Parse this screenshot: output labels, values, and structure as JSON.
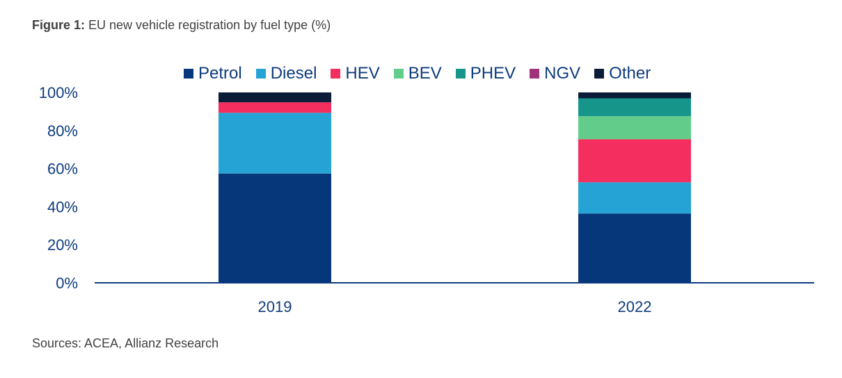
{
  "figure": {
    "number_label": "Figure 1:",
    "title_text": "EU new vehicle registration by fuel type (%)"
  },
  "source": "Sources: ACEA, Allianz Research",
  "colors": {
    "text": "#414141",
    "axis": "#0d3b7e"
  },
  "chart_data": {
    "type": "bar",
    "stacked": true,
    "title": "EU new vehicle registration by fuel type (%)",
    "xlabel": "",
    "ylabel": "",
    "categories": [
      "2019",
      "2022"
    ],
    "ylim": [
      0,
      100
    ],
    "yticks": [
      0,
      20,
      40,
      60,
      80,
      100
    ],
    "ytick_labels": [
      "0%",
      "20%",
      "40%",
      "60%",
      "80%",
      "100%"
    ],
    "legend_position": "top",
    "series": [
      {
        "name": "Petrol",
        "color": "#06377a",
        "values": [
          57.4,
          36.4
        ]
      },
      {
        "name": "Diesel",
        "color": "#26a3d5",
        "values": [
          31.9,
          16.4
        ]
      },
      {
        "name": "HEV",
        "color": "#f42e5e",
        "values": [
          5.5,
          22.6
        ]
      },
      {
        "name": "BEV",
        "color": "#62cd8a",
        "values": [
          0.0,
          12.1
        ]
      },
      {
        "name": "PHEV",
        "color": "#16958b",
        "values": [
          0.0,
          9.4
        ]
      },
      {
        "name": "NGV",
        "color": "#a0327e",
        "values": [
          0.0,
          0.0
        ]
      },
      {
        "name": "Other",
        "color": "#0b1c39",
        "values": [
          5.2,
          3.1
        ]
      }
    ]
  }
}
